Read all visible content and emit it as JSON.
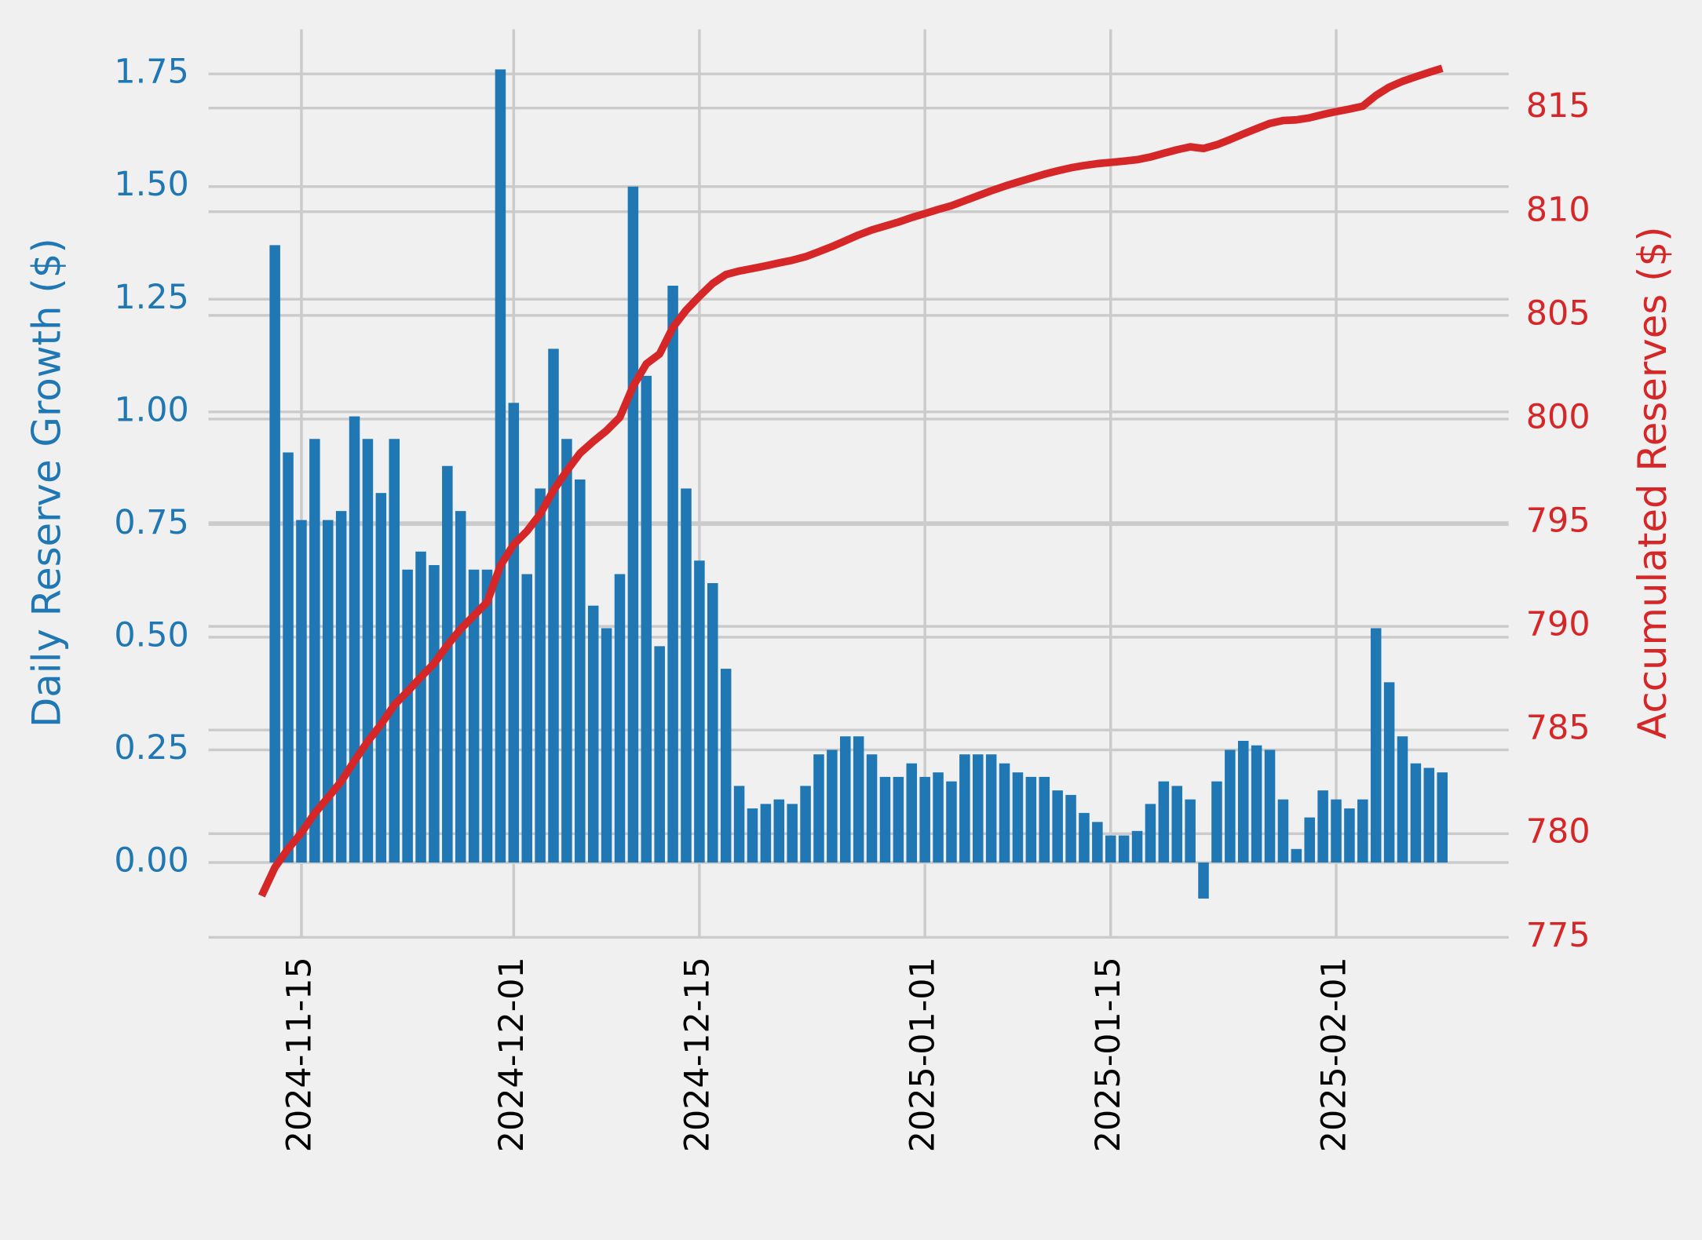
{
  "chart_data": {
    "type": "bar-line",
    "y_label": "Daily Reserve Growth ($)",
    "y2_label": "Accumulated Reserves ($)",
    "x": [
      "2024-11-12",
      "2024-11-13",
      "2024-11-14",
      "2024-11-15",
      "2024-11-16",
      "2024-11-17",
      "2024-11-18",
      "2024-11-19",
      "2024-11-20",
      "2024-11-21",
      "2024-11-22",
      "2024-11-23",
      "2024-11-24",
      "2024-11-25",
      "2024-11-26",
      "2024-11-27",
      "2024-11-28",
      "2024-11-29",
      "2024-11-30",
      "2024-12-01",
      "2024-12-02",
      "2024-12-03",
      "2024-12-04",
      "2024-12-05",
      "2024-12-06",
      "2024-12-07",
      "2024-12-08",
      "2024-12-09",
      "2024-12-10",
      "2024-12-11",
      "2024-12-12",
      "2024-12-13",
      "2024-12-14",
      "2024-12-15",
      "2024-12-16",
      "2024-12-17",
      "2024-12-18",
      "2024-12-19",
      "2024-12-20",
      "2024-12-21",
      "2024-12-22",
      "2024-12-23",
      "2024-12-24",
      "2024-12-25",
      "2024-12-26",
      "2024-12-27",
      "2024-12-28",
      "2024-12-29",
      "2024-12-30",
      "2024-12-31",
      "2025-01-01",
      "2025-01-02",
      "2025-01-03",
      "2025-01-04",
      "2025-01-05",
      "2025-01-06",
      "2025-01-07",
      "2025-01-08",
      "2025-01-09",
      "2025-01-10",
      "2025-01-11",
      "2025-01-12",
      "2025-01-13",
      "2025-01-14",
      "2025-01-15",
      "2025-01-16",
      "2025-01-17",
      "2025-01-18",
      "2025-01-19",
      "2025-01-20",
      "2025-01-21",
      "2025-01-22",
      "2025-01-23",
      "2025-01-24",
      "2025-01-25",
      "2025-01-26",
      "2025-01-27",
      "2025-01-28",
      "2025-01-29",
      "2025-01-30",
      "2025-01-31",
      "2025-02-01",
      "2025-02-02",
      "2025-02-03",
      "2025-02-04",
      "2025-02-05",
      "2025-02-06",
      "2025-02-07",
      "2025-02-08",
      "2025-02-09"
    ],
    "series": [
      {
        "name": "Daily Reserve Growth",
        "kind": "bar",
        "color": "#1f77b4",
        "values": [
          null,
          1.37,
          0.91,
          0.76,
          0.94,
          0.76,
          0.78,
          0.99,
          0.94,
          0.82,
          0.94,
          0.65,
          0.69,
          0.66,
          0.88,
          0.78,
          0.65,
          0.65,
          1.76,
          1.02,
          0.64,
          0.83,
          1.14,
          0.94,
          0.85,
          0.57,
          0.52,
          0.64,
          1.5,
          1.08,
          0.48,
          1.28,
          0.83,
          0.67,
          0.62,
          0.43,
          0.17,
          0.12,
          0.13,
          0.14,
          0.13,
          0.17,
          0.24,
          0.25,
          0.28,
          0.28,
          0.24,
          0.19,
          0.19,
          0.22,
          0.19,
          0.2,
          0.18,
          0.24,
          0.24,
          0.24,
          0.22,
          0.2,
          0.19,
          0.19,
          0.16,
          0.15,
          0.11,
          0.09,
          0.06,
          0.06,
          0.07,
          0.13,
          0.18,
          0.17,
          0.14,
          -0.08,
          0.18,
          0.25,
          0.27,
          0.26,
          0.25,
          0.14,
          0.03,
          0.1,
          0.16,
          0.14,
          0.12,
          0.14,
          0.52,
          0.4,
          0.28,
          0.22,
          0.21,
          0.2
        ]
      },
      {
        "name": "Accumulated Reserves",
        "kind": "line",
        "axis": "y2",
        "color": "#d62728",
        "values": [
          777,
          778.37,
          779.28,
          780.04,
          780.98,
          781.74,
          782.52,
          783.51,
          784.45,
          785.27,
          786.21,
          786.86,
          787.55,
          788.21,
          789.09,
          789.87,
          790.52,
          791.17,
          792.93,
          793.95,
          794.59,
          795.42,
          796.56,
          797.5,
          798.35,
          798.92,
          799.44,
          800.08,
          801.58,
          802.66,
          803.14,
          804.42,
          805.25,
          805.92,
          806.54,
          806.97,
          807.14,
          807.26,
          807.39,
          807.53,
          807.66,
          807.83,
          808.07,
          808.32,
          808.6,
          808.88,
          809.12,
          809.31,
          809.5,
          809.72,
          809.91,
          810.11,
          810.29,
          810.53,
          810.77,
          811.01,
          811.23,
          811.43,
          811.62,
          811.81,
          811.97,
          812.12,
          812.23,
          812.32,
          812.38,
          812.44,
          812.51,
          812.64,
          812.82,
          812.99,
          813.13,
          813.05,
          813.23,
          813.48,
          813.75,
          814.01,
          814.26,
          814.4,
          814.43,
          814.53,
          814.69,
          814.83,
          814.95,
          815.09,
          815.61,
          816.01,
          816.29,
          816.51,
          816.72,
          816.92
        ]
      }
    ],
    "xlim": [
      "2024-11-08",
      "2025-02-14"
    ],
    "xticks": [
      "2024-11-15",
      "2024-12-01",
      "2024-12-15",
      "2025-01-01",
      "2025-01-15",
      "2025-02-01"
    ],
    "ylim": [
      -0.166,
      1.849
    ],
    "yticks": [
      {
        "value": 0,
        "label": "0.00"
      },
      {
        "value": 0.25,
        "label": "0.25"
      },
      {
        "value": 0.5,
        "label": "0.50"
      },
      {
        "value": 0.75,
        "label": "0.75"
      },
      {
        "value": 1,
        "label": "1.00"
      },
      {
        "value": 1.25,
        "label": "1.25"
      },
      {
        "value": 1.5,
        "label": "1.50"
      },
      {
        "value": 1.75,
        "label": "1.75"
      }
    ],
    "y2lim": [
      775,
      818.8
    ],
    "y2ticks": [
      775,
      780,
      785,
      790,
      795,
      800,
      805,
      810,
      815
    ],
    "grid": true
  }
}
